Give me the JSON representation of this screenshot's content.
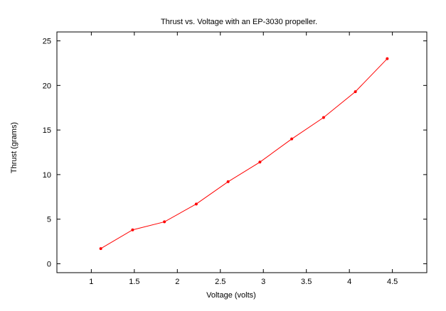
{
  "chart_data": {
    "type": "line",
    "title": "Thrust vs. Voltage with an EP-3030 propeller.",
    "xlabel": "Voltage (volts)",
    "ylabel": "Thrust (grams)",
    "xlim": [
      0.6,
      4.9
    ],
    "ylim": [
      -1,
      26
    ],
    "xticks": [
      1,
      1.5,
      2,
      2.5,
      3,
      3.5,
      4,
      4.5
    ],
    "xtick_labels": [
      "1",
      "1.5",
      "2",
      "2.5",
      "3",
      "3.5",
      "4",
      "4.5"
    ],
    "yticks": [
      0,
      5,
      10,
      15,
      20,
      25
    ],
    "ytick_labels": [
      "0",
      "5",
      "10",
      "15",
      "20",
      "25"
    ],
    "grid": false,
    "legend": "none",
    "series": [
      {
        "color": "#ff0000",
        "marker": "point",
        "x": [
          1.11,
          1.48,
          1.85,
          2.22,
          2.59,
          2.96,
          3.33,
          3.7,
          4.07,
          4.44
        ],
        "y": [
          1.7,
          3.8,
          4.7,
          6.7,
          9.2,
          11.4,
          14.0,
          16.4,
          19.3,
          23.0
        ]
      }
    ]
  }
}
